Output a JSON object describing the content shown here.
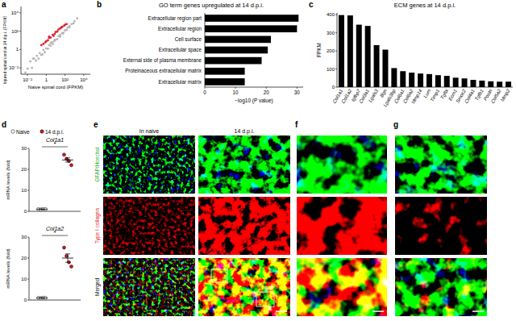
{
  "panel_labels": [
    "a",
    "b",
    "c",
    "d",
    "e",
    "f",
    "g"
  ],
  "chart_data": [
    {
      "type": "scatter",
      "x_label": "Naive spinal cord (FPKM)",
      "y_label": "Injured spinal cord at 14 d.p.i. (FPKM)",
      "log": true,
      "xlim": [
        0.002,
        50000
      ],
      "ylim": [
        0.002,
        50000
      ],
      "xticks": [
        {
          "value": 0.01,
          "label": "10⁻²"
        },
        1,
        {
          "value": 100,
          "label": "10²"
        },
        {
          "value": 10000,
          "label": "10⁴"
        }
      ],
      "yticks": [
        {
          "value": 0.01,
          "label": "10⁻²"
        },
        1,
        {
          "value": 100,
          "label": "10²"
        },
        {
          "value": 10000,
          "label": "10⁴"
        }
      ],
      "series": [
        {
          "color": "#b5b5b5",
          "x": [
            0.01,
            0.02,
            0.03,
            0.05,
            0.08,
            0.1,
            0.15,
            0.2,
            0.3,
            0.5,
            0.7,
            1,
            1.5,
            2,
            3,
            4,
            5,
            7,
            10,
            15,
            20,
            30,
            50,
            70,
            100,
            150,
            200,
            300,
            500,
            800,
            1000,
            2000,
            0.04,
            0.4,
            3,
            30,
            300,
            0.006,
            8,
            60
          ],
          "y": [
            0.008,
            0.05,
            0.01,
            0.1,
            0.06,
            0.2,
            0.1,
            0.4,
            0.25,
            0.9,
            0.5,
            1.3,
            1.2,
            3,
            2.5,
            6,
            4,
            8,
            12,
            13,
            28,
            25,
            60,
            65,
            120,
            140,
            250,
            280,
            600,
            700,
            1200,
            2500,
            0.1,
            0.3,
            5,
            40,
            350,
            0.003,
            11,
            55
          ]
        },
        {
          "color": "#e0202a",
          "x": [
            0.3,
            0.5,
            1,
            1.5,
            2,
            3,
            5,
            8,
            10,
            15,
            20,
            30,
            50,
            80,
            100,
            150,
            2,
            6,
            0.8,
            40
          ],
          "y": [
            3,
            4,
            8,
            10,
            18,
            20,
            40,
            50,
            80,
            90,
            150,
            200,
            300,
            400,
            500,
            600,
            25,
            30,
            6,
            250
          ]
        }
      ]
    },
    {
      "type": "bar",
      "orientation": "horizontal",
      "title": "GO term genes upregulated at 14 d.p.i.",
      "x_label": "−log10 (P value)",
      "categories": [
        "Extracellular region part",
        "Extracellular region",
        "Cell surface",
        "Extracellular space",
        "External side of plasma membrane",
        "Proteinaceous extracellular matrix",
        "Extracellular matrix"
      ],
      "values": [
        30.5,
        30,
        21.5,
        20.5,
        18.5,
        13,
        13
      ],
      "color": "#000000",
      "xlim": [
        0,
        32
      ],
      "xticks": [
        0,
        10,
        20,
        30
      ]
    },
    {
      "type": "bar",
      "title": "ECM genes at 14 d.p.i.",
      "y_label": "FPKM",
      "categories": [
        "Col1a1",
        "Col1a2",
        "Igfbp7",
        "Col3a1",
        "Lgals3",
        "Bgn",
        "Lgals3bp",
        "Col6a1",
        "Col6a2",
        "Mmp14",
        "Lum",
        "Timp1",
        "Tgfbi",
        "Ecm1",
        "Smoc2",
        "Col4a1",
        "Tgfb1",
        "Postn",
        "Col5a2",
        "Mmp2"
      ],
      "values": [
        398,
        396,
        345,
        338,
        232,
        207,
        105,
        88,
        80,
        75,
        72,
        66,
        62,
        52,
        48,
        40,
        36,
        32,
        30,
        30
      ],
      "color": "#000000",
      "ylim": [
        0,
        410
      ],
      "yticks": [
        0,
        100,
        200,
        300,
        400
      ]
    },
    {
      "type": "dot",
      "title": "Col1a1",
      "y_label": "mRNA levels (fold)",
      "ylim": [
        0,
        30
      ],
      "yticks": [
        0,
        10,
        20,
        30
      ],
      "legend": "top",
      "annotations": [
        "*"
      ],
      "series": [
        {
          "name": "Naive",
          "color": "#ffffff",
          "values": [
            1.0,
            0.9,
            1.1,
            1.0
          ],
          "mean": 1.0,
          "error": 0.1
        },
        {
          "name": "14 d.p.i.",
          "color": "#d7191c",
          "values": [
            27,
            25,
            24,
            22
          ],
          "mean": 24.5,
          "error": 1.0
        }
      ]
    },
    {
      "type": "dot",
      "title": "Col1a2",
      "y_label": "mRNA levels (fold)",
      "ylim": [
        0,
        30
      ],
      "yticks": [
        0,
        10,
        20,
        30
      ],
      "annotations": [
        "*"
      ],
      "series": [
        {
          "color": "#ffffff",
          "values": [
            1.0,
            0.9,
            1.1,
            1.0
          ],
          "mean": 1.0,
          "error": 0.1
        },
        {
          "color": "#d7191c",
          "values": [
            25,
            21,
            18,
            16
          ],
          "mean": 20,
          "error": 2
        }
      ]
    }
  ],
  "images": {
    "columns": [
      "In naive",
      "14 d.p.i."
    ],
    "rows": [
      "GFAP/Hoechst",
      "Type I collagen",
      "Merged"
    ],
    "inset_label": "g"
  }
}
